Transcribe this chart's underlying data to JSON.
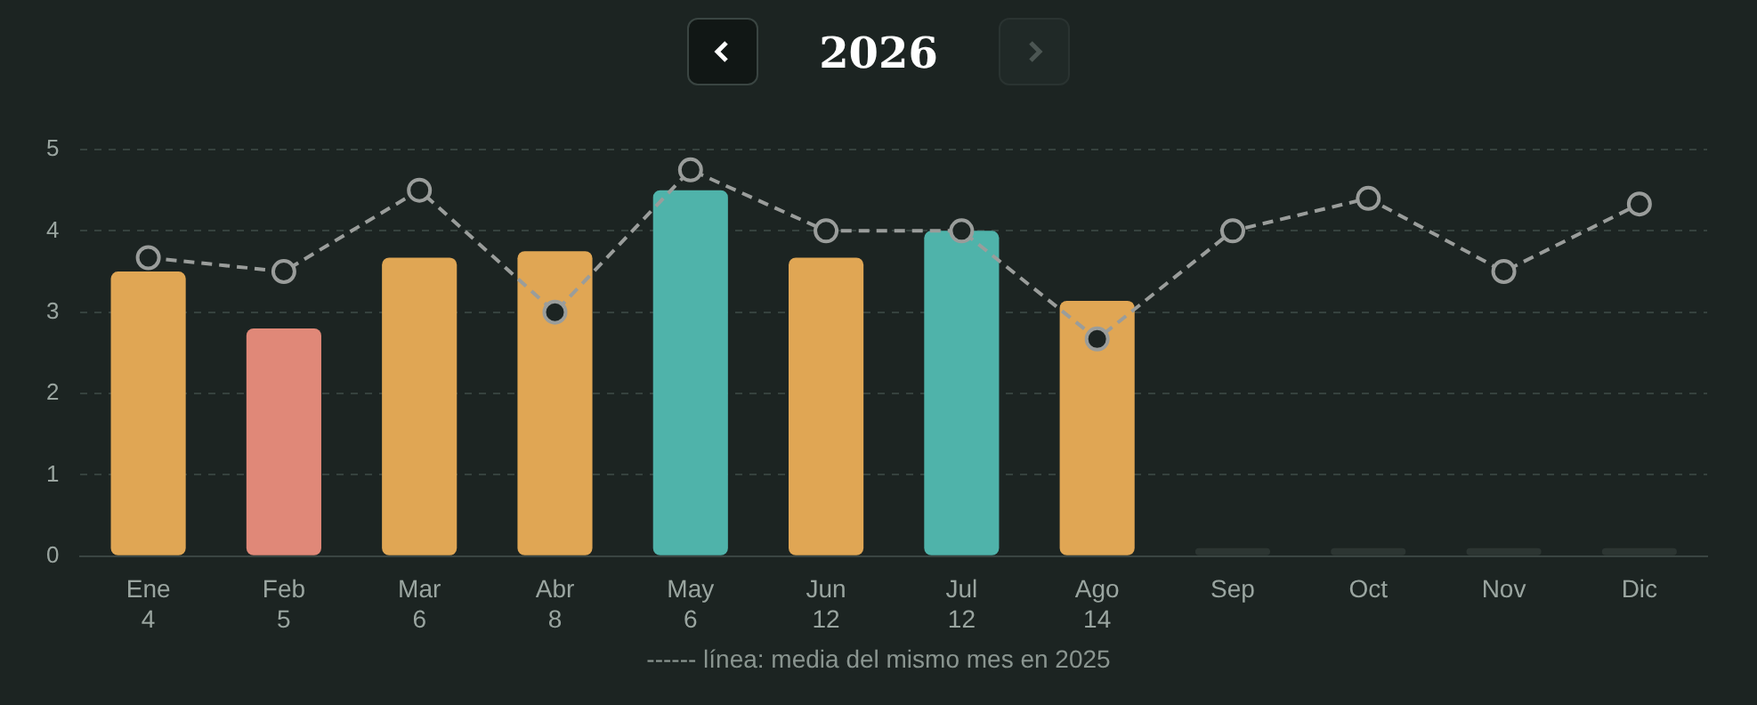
{
  "chart_data": {
    "type": "bar",
    "title": "2026",
    "categories": [
      "Ene\n4",
      "Feb\n5",
      "Mar\n6",
      "Abr\n8",
      "May\n6",
      "Jun\n12",
      "Jul\n12",
      "Ago\n14",
      "Sep",
      "Oct",
      "Nov",
      "Dic"
    ],
    "series": [
      {
        "colors": [
          "#e0a654",
          "#e08878",
          "#e0a654",
          "#e0a654",
          "#4fb3aa",
          "#e0a654",
          "#4fb3aa",
          "#e0a654",
          "#2c3532",
          "#2c3532",
          "#2c3532",
          "#2c3532"
        ],
        "values": [
          3.5,
          2.8,
          3.67,
          3.75,
          4.5,
          3.67,
          4.0,
          3.14,
          0.1,
          0.1,
          0.1,
          0.1
        ]
      },
      {
        "type": "line",
        "color": "#9a9d9b",
        "values": [
          3.67,
          3.5,
          4.5,
          3.0,
          4.75,
          4.0,
          4.0,
          2.67,
          4.0,
          4.4,
          3.5,
          4.33
        ]
      }
    ],
    "ylim": [
      0,
      5
    ],
    "yticks": [
      0,
      1,
      2,
      3,
      4,
      5
    ],
    "grid": "y",
    "legend": false,
    "marker": "circle",
    "line_style": "dashed",
    "annotations": [
      "------ línea: media del mismo mes en 2025"
    ]
  }
}
